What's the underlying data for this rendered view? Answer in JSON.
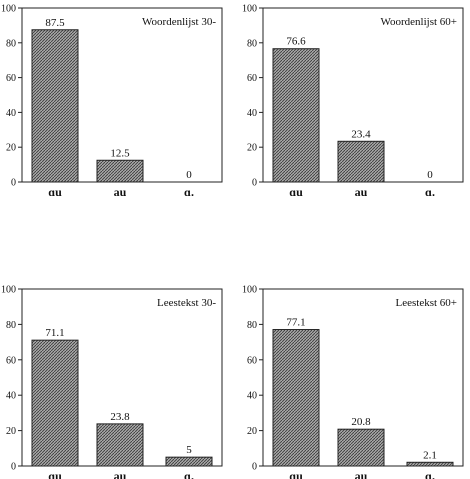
{
  "chart_data": [
    {
      "type": "bar",
      "title": "Woordenlijst 30-",
      "categories": [
        "ɑu",
        "au",
        "ɑ."
      ],
      "values": [
        87.5,
        12.5,
        0
      ],
      "value_labels": [
        "87.5",
        "12.5",
        "0"
      ],
      "ylim": [
        0,
        100
      ],
      "yticks": [
        0,
        20,
        40,
        60,
        80,
        100
      ],
      "grid": false,
      "title_position": "top-right"
    },
    {
      "type": "bar",
      "title": "Woordenlijst 60+",
      "categories": [
        "ɑu",
        "au",
        "ɑ."
      ],
      "values": [
        76.6,
        23.4,
        0
      ],
      "value_labels": [
        "76.6",
        "23.4",
        "0"
      ],
      "ylim": [
        0,
        100
      ],
      "yticks": [
        0,
        20,
        40,
        60,
        80,
        100
      ],
      "grid": false,
      "title_position": "top-right"
    },
    {
      "type": "bar",
      "title": "Leestekst 30-",
      "categories": [
        "ɑu",
        "au",
        "ɑ."
      ],
      "values": [
        71.1,
        23.8,
        5
      ],
      "value_labels": [
        "71.1",
        "23.8",
        "5"
      ],
      "ylim": [
        0,
        100
      ],
      "yticks": [
        0,
        20,
        40,
        60,
        80,
        100
      ],
      "grid": false,
      "title_position": "top-right"
    },
    {
      "type": "bar",
      "title": "Leestekst 60+",
      "categories": [
        "ɑu",
        "au",
        "ɑ."
      ],
      "values": [
        77.1,
        20.8,
        2.1
      ],
      "value_labels": [
        "77.1",
        "20.8",
        "2.1"
      ],
      "ylim": [
        0,
        100
      ],
      "yticks": [
        0,
        20,
        40,
        60,
        80,
        100
      ],
      "grid": false,
      "title_position": "top-right"
    }
  ],
  "colors": {
    "bar_fill": "#8c8c8c",
    "bar_stroke": "#222222",
    "axis": "#222222"
  }
}
